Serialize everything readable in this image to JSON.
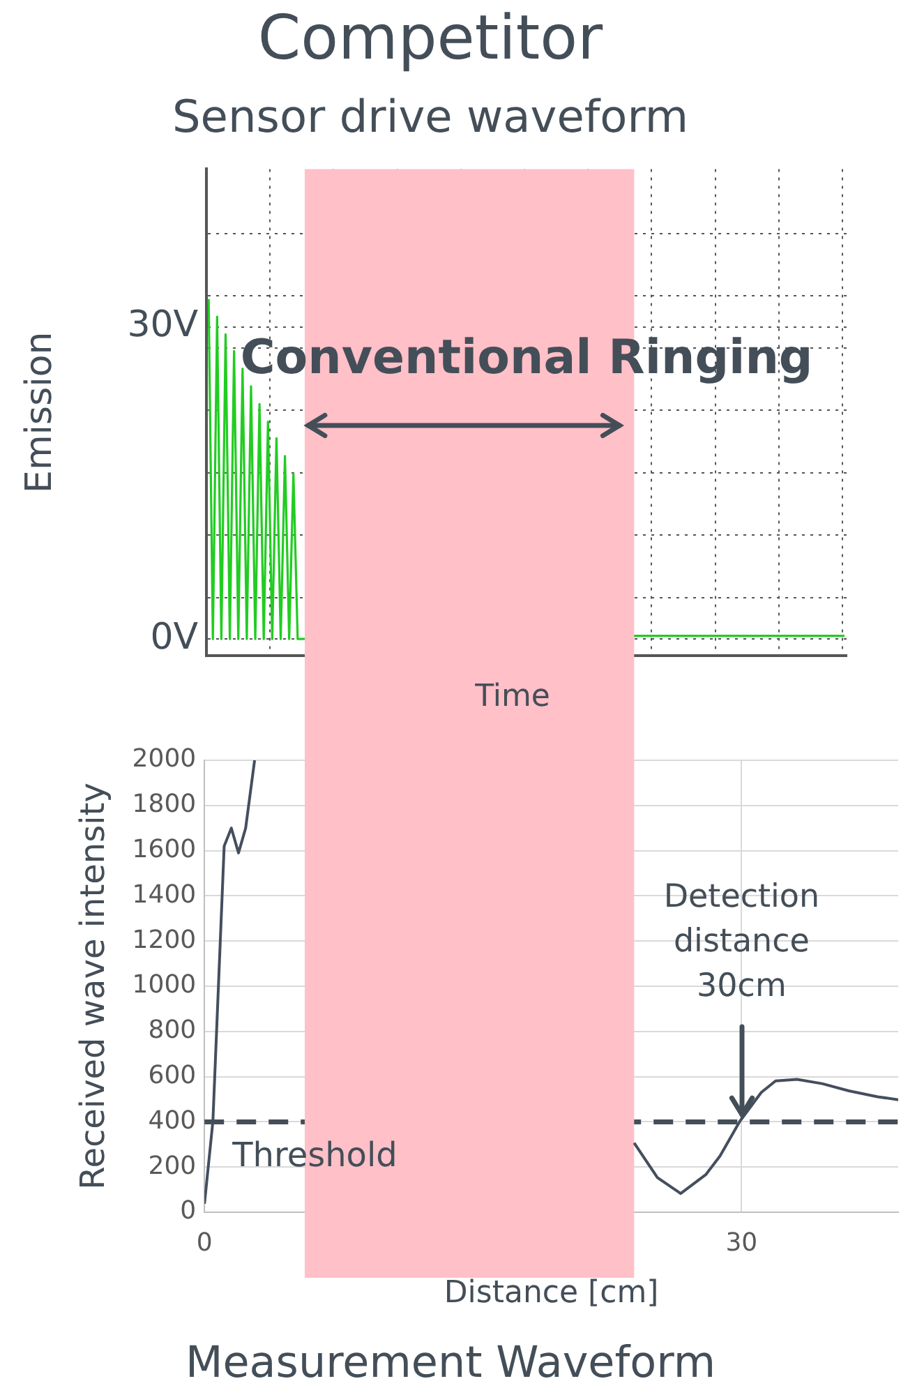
{
  "chart_data": [
    {
      "type": "line",
      "title": "Competitor",
      "subtitle": "Sensor drive waveform",
      "xlabel": "Time",
      "ylabel": "Emission",
      "categories": [
        null,
        null,
        null,
        null,
        null,
        null,
        null,
        null,
        null,
        null,
        null,
        null,
        null,
        null,
        null,
        null,
        null,
        null,
        null,
        null,
        null,
        null,
        null,
        null,
        null,
        null,
        null,
        null,
        null,
        null,
        null,
        null,
        null,
        null,
        null,
        null,
        null,
        null,
        null,
        null,
        null,
        null,
        null,
        null,
        null,
        null,
        null,
        null,
        null,
        null,
        null,
        null,
        null,
        null,
        null,
        null,
        null,
        null,
        null,
        null,
        null,
        null,
        null,
        null,
        null,
        null,
        null,
        null,
        null,
        null,
        null,
        null,
        null,
        null,
        null,
        null,
        null,
        null,
        null,
        null,
        null,
        null,
        null,
        null,
        null,
        null,
        null,
        null,
        null,
        null,
        null,
        null,
        null,
        null,
        null,
        null,
        null,
        null,
        null,
        null,
        null,
        null,
        null,
        null,
        null,
        null,
        null,
        null,
        null,
        null,
        null,
        null,
        null,
        null,
        null,
        null,
        null,
        null,
        null,
        null,
        null,
        null,
        null,
        null,
        null,
        null,
        null,
        null,
        null,
        null,
        null,
        null,
        null,
        null,
        null,
        null,
        null,
        null,
        null,
        null,
        null,
        null,
        null,
        null,
        null,
        null,
        null,
        null,
        null,
        null,
        null
      ],
      "series": [
        {
          "color": "#22cc22",
          "values": [
            32.7,
            0,
            31.0,
            0,
            29.3,
            0,
            27.7,
            0,
            26.0,
            0,
            24.3,
            0,
            22.6,
            0,
            20.9,
            0,
            19.3,
            0,
            17.6,
            0,
            15.9,
            0,
            null,
            null,
            null,
            null,
            null,
            null,
            null,
            null,
            null,
            null,
            null,
            null,
            null,
            null,
            null,
            null,
            null,
            null,
            null,
            null,
            null,
            null,
            null,
            null,
            null,
            null,
            null,
            null,
            null,
            null,
            null,
            null,
            null,
            null,
            null,
            null,
            null,
            null,
            null,
            null,
            null,
            null,
            null,
            null,
            null,
            null,
            null,
            null,
            null,
            null,
            null,
            null,
            null,
            null,
            null,
            null,
            null,
            null,
            null,
            null,
            null,
            null,
            null,
            null,
            null,
            null,
            null,
            null,
            null,
            null,
            null,
            null,
            null,
            null,
            null,
            null,
            null,
            null,
            null,
            0.3,
            0.3,
            0.3,
            0.3,
            0.3,
            0.3,
            0.3,
            0.3,
            0.3,
            0.3,
            0.3,
            0.3,
            0.3,
            0.3,
            0.3,
            0.3,
            0.3,
            0.3,
            0.3,
            0.3,
            0.3,
            0.3,
            0.3,
            0.3,
            0.3,
            0.3,
            0.3,
            0.3,
            0.3,
            0.3,
            0.3,
            0.3,
            0.3,
            0.3,
            0.3,
            0.3,
            0.3,
            0.3,
            0.3,
            0.3,
            0.3,
            0.3,
            0.3,
            0.3,
            0.3,
            0.3,
            0.3,
            0.3,
            0.3,
            0.3
          ]
        }
      ],
      "ylim": [
        -1.6,
        45.2
      ],
      "yticks": [
        {
          "value": 0,
          "label": "0V"
        },
        {
          "value": 4,
          "label": null
        },
        {
          "value": 10,
          "label": null
        },
        {
          "value": 16,
          "label": null
        },
        {
          "value": 22,
          "label": null
        },
        {
          "value": 28,
          "label": null
        },
        {
          "value": 30,
          "label": "30V"
        },
        {
          "value": 33,
          "label": null
        },
        {
          "value": 39,
          "label": null
        }
      ],
      "grid": true,
      "tick_labels": "y",
      "marker": "none",
      "line_style": "solid"
    },
    {
      "type": "line",
      "xlabel": "Distance [cm]",
      "ylabel": "Received wave intensity",
      "x": [
        0,
        0.47,
        1.1,
        1.5,
        1.9,
        2.3,
        2.8,
        12,
        24.0,
        25.3,
        26.6,
        28.0,
        28.8,
        29.9,
        31.1,
        31.9,
        33.1,
        34.5,
        36.0,
        37.6,
        38.75
      ],
      "series": [
        {
          "color": "#444e5e",
          "values": [
            38,
            402,
            1620,
            1700,
            1590,
            1700,
            2000,
            null,
            307,
            153,
            83,
            166,
            249,
            402,
            530,
            581,
            588,
            569,
            537,
            511,
            498
          ]
        }
      ],
      "xlim": [
        0,
        38.75
      ],
      "xticks": [
        0,
        30
      ],
      "ylim": [
        0,
        2000
      ],
      "yticks": [
        0,
        200,
        400,
        600,
        800,
        1000,
        1200,
        1400,
        1600,
        1800,
        2000
      ],
      "grid": true,
      "marker": "none",
      "line_style": "solid",
      "bands": [
        {
          "axis": "x",
          "from": 5.6,
          "to": 24.0,
          "label": "Conventional Ringing",
          "color": "#ffc0c8"
        }
      ],
      "ref_lines": [
        {
          "axis": "y",
          "value": 400,
          "label": "Threshold",
          "line_style": "dashed",
          "color": "#444e58"
        }
      ],
      "annotations": [
        {
          "text": "Detection distance 30cm",
          "x": 30,
          "y": 400
        },
        "Measurement Waveform"
      ]
    }
  ]
}
